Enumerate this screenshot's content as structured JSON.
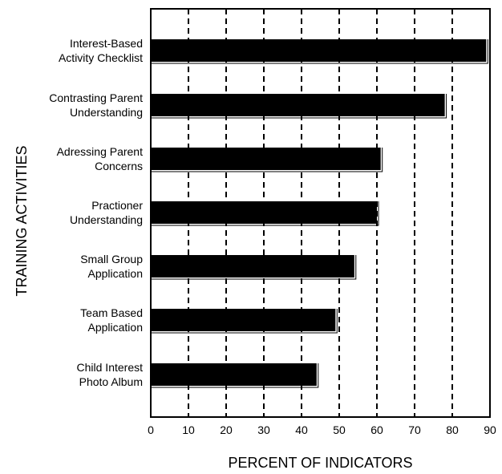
{
  "chart_data": {
    "type": "bar",
    "orientation": "horizontal",
    "title": "",
    "xlabel": "PERCENT OF INDICATORS",
    "ylabel": "TRAINING ACTIVITIES",
    "xlim": [
      0,
      90
    ],
    "xticks": [
      "0",
      "10",
      "20",
      "30",
      "40",
      "50",
      "60",
      "70",
      "80",
      "90"
    ],
    "categories": [
      [
        "Interest-Based",
        "Activity Checklist"
      ],
      [
        "Contrasting Parent",
        "Understanding"
      ],
      [
        "Adressing Parent",
        "Concerns"
      ],
      [
        "Practioner",
        "Understanding"
      ],
      [
        "Small Group",
        "Application"
      ],
      [
        "Team Based",
        "Application"
      ],
      [
        "Child Interest",
        "Photo Album"
      ]
    ],
    "values": [
      89,
      78,
      61,
      60,
      54,
      49,
      44
    ],
    "bar_color": "#000000",
    "grid": "vertical dashed"
  }
}
